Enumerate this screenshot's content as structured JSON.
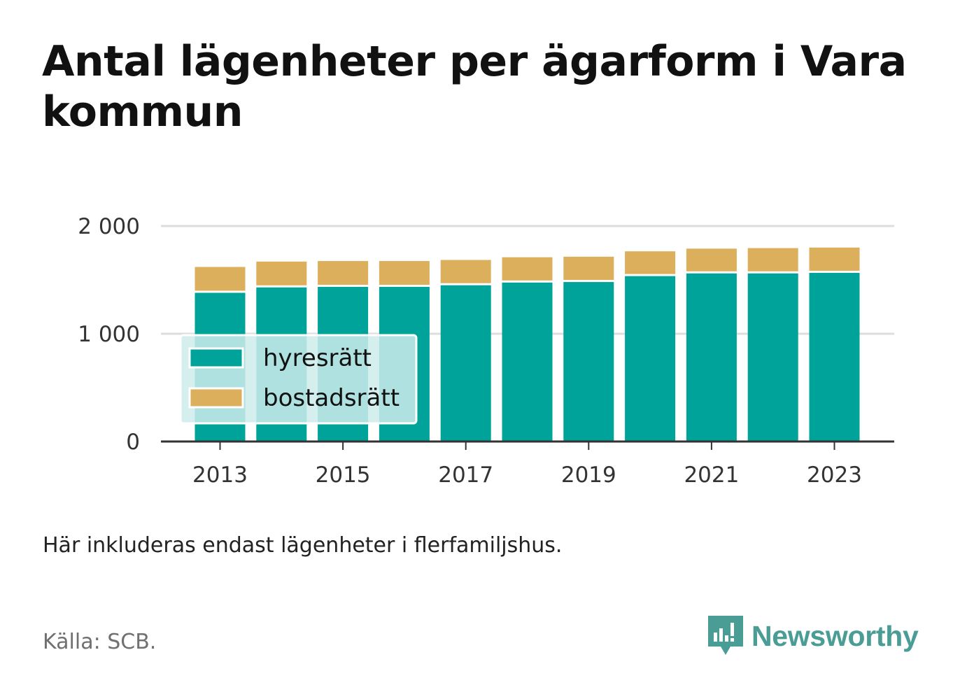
{
  "title": "Antal lägenheter per ägarform i Vara kommun",
  "note": "Här inkluderas endast lägenheter i flerfamiljshus.",
  "source": "Källa: SCB.",
  "logo": {
    "name": "Newsworthy",
    "icon": "bar-chart-speech-bubble-icon",
    "color": "#4a9d95"
  },
  "colors": {
    "hyresratt": "#00a39a",
    "bostadsratt": "#dcaf5c",
    "grid": "#dddddd",
    "axis": "#333333",
    "legend_bg": "#cdeceb"
  },
  "chart_data": {
    "type": "bar",
    "stacked": true,
    "x": [
      2013,
      2014,
      2015,
      2016,
      2017,
      2018,
      2019,
      2020,
      2021,
      2022,
      2023
    ],
    "x_ticks": [
      "2013",
      "2015",
      "2017",
      "2019",
      "2021",
      "2023"
    ],
    "y_ticks": [
      "0",
      "1 000",
      "2 000"
    ],
    "ylim": [
      0,
      2000
    ],
    "grid": true,
    "legend_position": "bottom-left, inside plot",
    "series": [
      {
        "name": "hyresrätt",
        "values": [
          1380,
          1430,
          1435,
          1435,
          1450,
          1475,
          1480,
          1535,
          1560,
          1560,
          1565
        ]
      },
      {
        "name": "bostadsrätt",
        "values": [
          240,
          240,
          240,
          240,
          235,
          235,
          235,
          230,
          230,
          235,
          235
        ]
      }
    ]
  }
}
